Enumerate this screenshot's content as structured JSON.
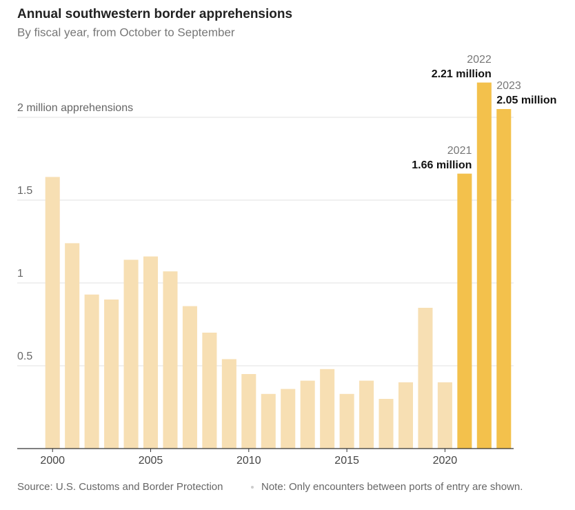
{
  "chart_data": {
    "type": "bar",
    "title": "Annual southwestern border apprehensions",
    "subtitle": "By fiscal year, from October to September",
    "source": "Source: U.S. Customs and Border Protection",
    "note": "Note: Only encounters between ports of entry are shown.",
    "x": [
      2000,
      2001,
      2002,
      2003,
      2004,
      2005,
      2006,
      2007,
      2008,
      2009,
      2010,
      2011,
      2012,
      2013,
      2014,
      2015,
      2016,
      2017,
      2018,
      2019,
      2020,
      2021,
      2022,
      2023
    ],
    "values": [
      1.64,
      1.24,
      0.93,
      0.9,
      1.14,
      1.16,
      1.07,
      0.86,
      0.7,
      0.54,
      0.45,
      0.33,
      0.36,
      0.41,
      0.48,
      0.33,
      0.41,
      0.3,
      0.4,
      0.85,
      0.4,
      1.66,
      2.21,
      2.05
    ],
    "value_labels": [
      null,
      null,
      null,
      null,
      null,
      null,
      null,
      null,
      null,
      null,
      null,
      null,
      null,
      null,
      null,
      null,
      null,
      null,
      null,
      null,
      null,
      "1.66 million",
      "2.21 million",
      "2.05 million"
    ],
    "colors": [
      "#f7dfb3",
      "#f7dfb3",
      "#f7dfb3",
      "#f7dfb3",
      "#f7dfb3",
      "#f7dfb3",
      "#f7dfb3",
      "#f7dfb3",
      "#f7dfb3",
      "#f7dfb3",
      "#f7dfb3",
      "#f7dfb3",
      "#f7dfb3",
      "#f7dfb3",
      "#f7dfb3",
      "#f7dfb3",
      "#f7dfb3",
      "#f7dfb3",
      "#f7dfb3",
      "#f7dfb3",
      "#f7dfb3",
      "#f3c14c",
      "#f3c14c",
      "#f3c14c"
    ],
    "xlim": [
      1998.2,
      2023.5
    ],
    "xticks": [
      2000,
      2005,
      2010,
      2015,
      2020
    ],
    "ylim": [
      0,
      2.25
    ],
    "yticks": [
      0.5,
      1,
      1.5,
      {
        "value": 2,
        "label": "2 million apprehensions"
      }
    ],
    "grid": true
  }
}
